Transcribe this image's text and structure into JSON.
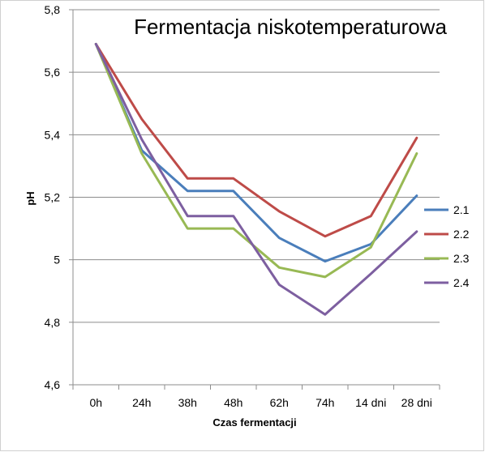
{
  "chart_data": {
    "type": "line",
    "title": "Fermentacja niskotemperaturowa",
    "xlabel": "Czas fermentacji",
    "ylabel": "pH",
    "categories": [
      "0h",
      "24h",
      "38h",
      "48h",
      "62h",
      "74h",
      "14 dni",
      "28 dni"
    ],
    "ylim": [
      4.6,
      5.8
    ],
    "yticks": [
      4.6,
      4.8,
      5.0,
      5.2,
      5.4,
      5.6,
      5.8
    ],
    "ytick_labels": [
      "4,6",
      "4,8",
      "5",
      "5,2",
      "5,4",
      "5,6",
      "5,8"
    ],
    "grid": "horizontal",
    "legend_position": "right",
    "series": [
      {
        "name": "2.1",
        "color": "#4a7ebb",
        "values": [
          5.69,
          5.35,
          5.22,
          5.22,
          5.07,
          4.995,
          5.05,
          5.205
        ]
      },
      {
        "name": "2.2",
        "color": "#be4b48",
        "values": [
          5.69,
          5.45,
          5.26,
          5.26,
          5.155,
          5.075,
          5.14,
          5.39
        ]
      },
      {
        "name": "2.3",
        "color": "#98b954",
        "values": [
          5.69,
          5.34,
          5.1,
          5.1,
          4.975,
          4.945,
          5.04,
          5.34
        ]
      },
      {
        "name": "2.4",
        "color": "#7d5fa0",
        "values": [
          5.69,
          5.385,
          5.14,
          5.14,
          4.92,
          4.825,
          4.955,
          5.09
        ]
      }
    ]
  }
}
